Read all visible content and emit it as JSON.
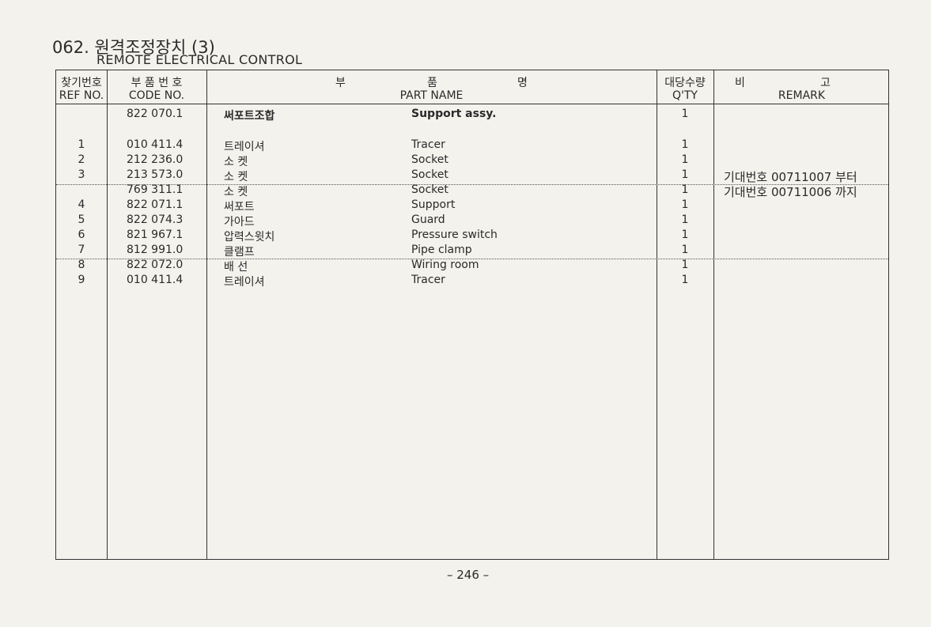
{
  "title": "062. 원격조정장치 (3)",
  "subtitle": "REMOTE ELECTRICAL CONTROL",
  "headers": {
    "ref_ko": "찾기번호",
    "ref_en": "REF NO.",
    "code_ko": "부 품 번 호",
    "code_en": "CODE NO.",
    "name_ko_1": "부",
    "name_ko_2": "품",
    "name_ko_3": "명",
    "name_en": "PART NAME",
    "qty_ko": "대당수량",
    "qty_en": "Q'TY",
    "remark_ko_1": "비",
    "remark_ko_2": "고",
    "remark_en": "REMARK"
  },
  "rows": [
    {
      "ref": "",
      "code": "822 070.1",
      "name_ko": "써포트조합",
      "name_en": "Support assy.",
      "qty": "1",
      "remark": ""
    },
    {
      "ref": "1",
      "code": "010 411.4",
      "name_ko": "트레이셔",
      "name_en": "Tracer",
      "qty": "1",
      "remark": ""
    },
    {
      "ref": "2",
      "code": "212 236.0",
      "name_ko": "소  켓",
      "name_en": "Socket",
      "qty": "1",
      "remark": ""
    },
    {
      "ref": "3",
      "code": "213 573.0",
      "name_ko": "소  켓",
      "name_en": "Socket",
      "qty": "1",
      "remark": "기대번호 00711007 부터"
    },
    {
      "ref": "",
      "code": "769 311.1",
      "name_ko": "소  켓",
      "name_en": "Socket",
      "qty": "1",
      "remark": "기대번호 00711006 까지"
    },
    {
      "ref": "4",
      "code": "822 071.1",
      "name_ko": "써포트",
      "name_en": "Support",
      "qty": "1",
      "remark": ""
    },
    {
      "ref": "5",
      "code": "822 074.3",
      "name_ko": "가아드",
      "name_en": "Guard",
      "qty": "1",
      "remark": ""
    },
    {
      "ref": "6",
      "code": "821 967.1",
      "name_ko": "압력스윗치",
      "name_en": "Pressure switch",
      "qty": "1",
      "remark": ""
    },
    {
      "ref": "7",
      "code": "812 991.0",
      "name_ko": "클램프",
      "name_en": "Pipe clamp",
      "qty": "1",
      "remark": ""
    },
    {
      "ref": "8",
      "code": "822 072.0",
      "name_ko": "배  선",
      "name_en": "Wiring room",
      "qty": "1",
      "remark": ""
    },
    {
      "ref": "9",
      "code": "010 411.4",
      "name_ko": "트레이셔",
      "name_en": "Tracer",
      "qty": "1",
      "remark": ""
    }
  ],
  "page_number": "– 246 –"
}
